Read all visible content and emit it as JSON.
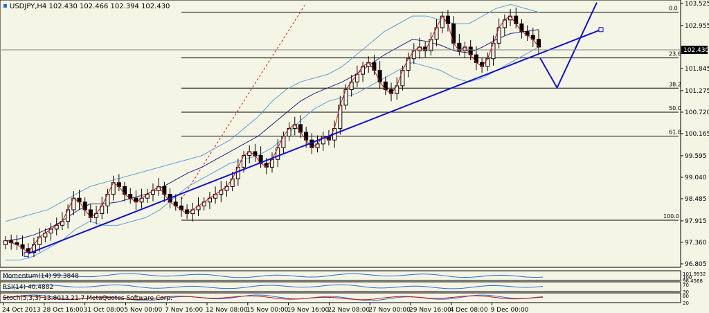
{
  "chart_data": {
    "type": "candlestick",
    "title": "USDJPY,H4 102.430 102.466 102.394 102.430",
    "symbol": "USDJPY",
    "timeframe": "H4",
    "ohlc_header": {
      "open": 102.43,
      "high": 102.466,
      "low": 102.394,
      "close": 102.43
    },
    "current_price": "102.430",
    "ylim": [
      96.805,
      103.525
    ],
    "y_ticks": [
      "103.525",
      "102.955",
      "101.845",
      "101.275",
      "100.720",
      "100.165",
      "99.595",
      "99.040",
      "98.485",
      "97.915",
      "97.360",
      "96.805"
    ],
    "x_ticks": [
      "24 Oct 2013",
      "28 Oct 16:00",
      "31 Oct 08:00",
      "5 Nov 00:00",
      "7 Nov 16:00",
      "12 Nov 08:00",
      "15 Nov 00:00",
      "19 Nov 16:00",
      "22 Nov 08:00",
      "27 Nov 00:00",
      "29 Nov 16:00",
      "4 Dec 08:00",
      "9 Dec 00:00"
    ],
    "fib_levels": [
      {
        "label": "0.0",
        "price": 103.3
      },
      {
        "label": "23.6",
        "price": 102.12
      },
      {
        "label": "38.2",
        "price": 101.34
      },
      {
        "label": "50.0",
        "price": 100.72
      },
      {
        "label": "61.8",
        "price": 100.1
      },
      {
        "label": "100.0",
        "price": 97.93
      }
    ],
    "close_series": [
      97.4,
      97.35,
      97.3,
      97.2,
      97.1,
      97.3,
      97.5,
      97.6,
      97.7,
      97.8,
      97.9,
      98.2,
      98.5,
      98.4,
      98.2,
      98.0,
      98.1,
      98.3,
      98.6,
      98.9,
      98.8,
      98.6,
      98.5,
      98.4,
      98.5,
      98.6,
      98.7,
      98.8,
      98.6,
      98.4,
      98.3,
      98.2,
      98.1,
      98.2,
      98.3,
      98.4,
      98.5,
      98.6,
      98.7,
      98.8,
      99.0,
      99.3,
      99.6,
      99.7,
      99.6,
      99.4,
      99.3,
      99.5,
      99.8,
      100.1,
      100.3,
      100.4,
      100.2,
      100.0,
      99.8,
      99.9,
      100.1,
      100.0,
      100.3,
      100.9,
      101.3,
      101.5,
      101.7,
      101.9,
      102.0,
      101.8,
      101.5,
      101.3,
      101.2,
      101.4,
      101.8,
      102.1,
      102.3,
      102.4,
      102.3,
      102.6,
      102.9,
      103.2,
      103.0,
      102.5,
      102.3,
      102.4,
      102.2,
      102.0,
      101.9,
      102.1,
      102.5,
      102.9,
      103.1,
      103.2,
      103.0,
      102.8,
      102.7,
      102.6,
      102.4
    ],
    "upper_band": [
      97.9,
      98.0,
      98.1,
      98.2,
      98.4,
      98.6,
      98.8,
      98.9,
      99.0,
      99.1,
      99.2,
      99.3,
      99.4,
      99.5,
      99.6,
      99.8,
      100.0,
      100.3,
      100.6,
      101.0,
      101.3,
      101.5,
      101.6,
      101.7,
      101.9,
      102.2,
      102.5,
      102.8,
      103.0,
      103.2,
      103.2,
      103.1,
      103.0,
      103.0,
      103.2,
      103.4,
      103.5,
      103.4,
      103.3
    ],
    "lower_band": [
      96.9,
      96.9,
      97.0,
      97.2,
      97.4,
      97.7,
      97.9,
      97.8,
      97.8,
      97.9,
      98.0,
      98.2,
      98.5,
      98.8,
      99.0,
      99.2,
      99.4,
      99.5,
      99.6,
      99.8,
      100.1,
      100.5,
      100.8,
      101.0,
      101.1,
      101.2,
      101.4,
      101.6,
      101.8,
      102.0,
      101.9,
      101.8,
      101.6,
      101.5,
      101.6,
      101.8,
      102.0,
      102.2,
      102.4
    ],
    "trendline": {
      "from": [
        0.0,
        97.05
      ],
      "to": [
        1.0,
        102.85
      ]
    },
    "projection": [
      [
        0.0,
        102.12
      ],
      [
        0.3,
        101.35
      ],
      [
        1.0,
        103.55
      ]
    ],
    "indicators": {
      "momentum": {
        "label": "Momentum(14) 99.3848",
        "scale_labels": [
          "101.9932",
          "100",
          "98.4568"
        ]
      },
      "rsi": {
        "label": "RSI(14) 40.4882",
        "scale_labels": [
          "70",
          "30"
        ]
      },
      "stochastic": {
        "label": "Stoch(5,3,3) 13.8013 21.7 MetaQuotes Software Corp.",
        "scale_labels": [
          "80",
          "20"
        ]
      }
    }
  }
}
